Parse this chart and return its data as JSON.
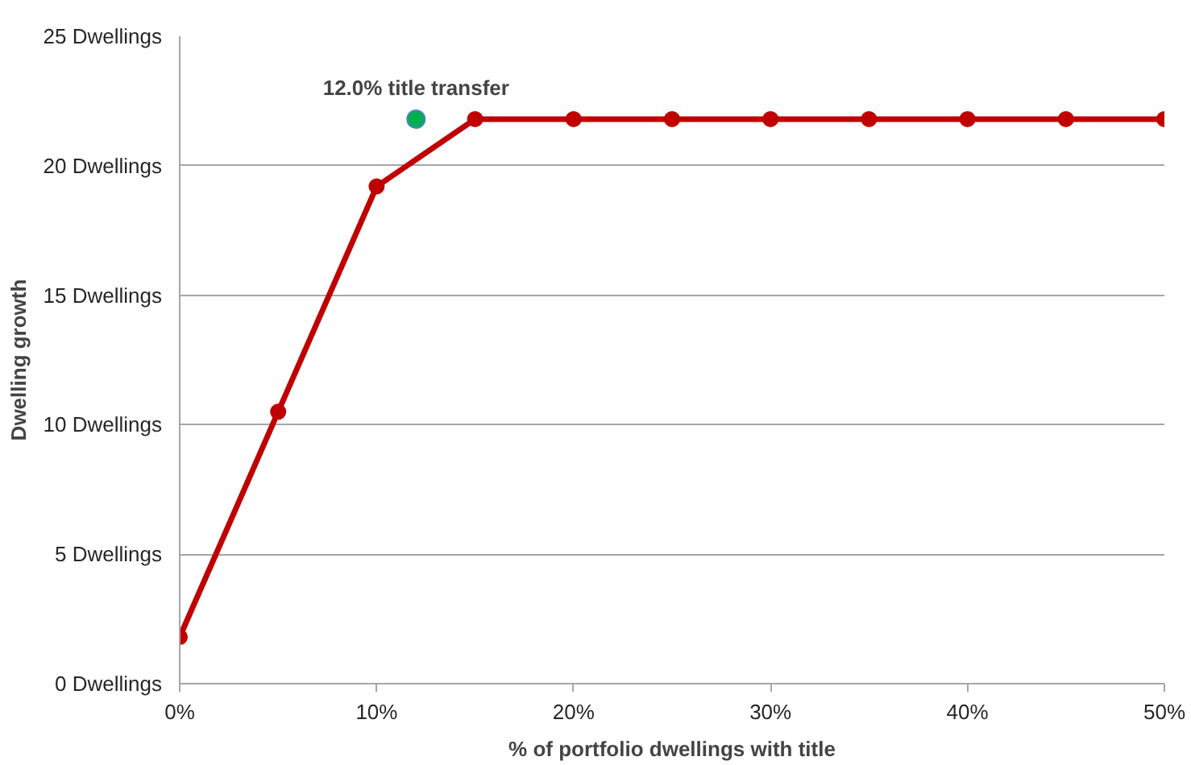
{
  "chart_data": {
    "type": "line",
    "xlabel": "% of portfolio dwellings with title",
    "ylabel": "Dwelling growth",
    "x": [
      0,
      5,
      10,
      15,
      20,
      25,
      30,
      35,
      40,
      45,
      50
    ],
    "series": [
      {
        "color": "#c00000",
        "values": [
          1.8,
          10.5,
          19.2,
          21.8,
          21.8,
          21.8,
          21.8,
          21.8,
          21.8,
          21.8,
          21.8
        ]
      },
      {
        "type": "scatter",
        "color": "#00b050",
        "x": [
          12
        ],
        "values": [
          21.8
        ]
      }
    ],
    "annotations": [
      {
        "text": "12.0% title transfer",
        "x": 12,
        "y": 21.8
      }
    ],
    "xlim": [
      0,
      50
    ],
    "xticks": [
      {
        "value": 0,
        "label": "0%"
      },
      {
        "value": 10,
        "label": "10%"
      },
      {
        "value": 20,
        "label": "20%"
      },
      {
        "value": 30,
        "label": "30%"
      },
      {
        "value": 40,
        "label": "40%"
      },
      {
        "value": 50,
        "label": "50%"
      }
    ],
    "ylim": [
      0,
      25
    ],
    "yticks": [
      {
        "value": 0,
        "label": "0 Dwellings"
      },
      {
        "value": 5,
        "label": "5 Dwellings"
      },
      {
        "value": 10,
        "label": "10 Dwellings"
      },
      {
        "value": 15,
        "label": "15 Dwellings"
      },
      {
        "value": 20,
        "label": "20 Dwellings"
      },
      {
        "value": 25,
        "label": "25 Dwellings"
      }
    ],
    "grid": "y",
    "marker": "circle",
    "line_style": "solid"
  }
}
